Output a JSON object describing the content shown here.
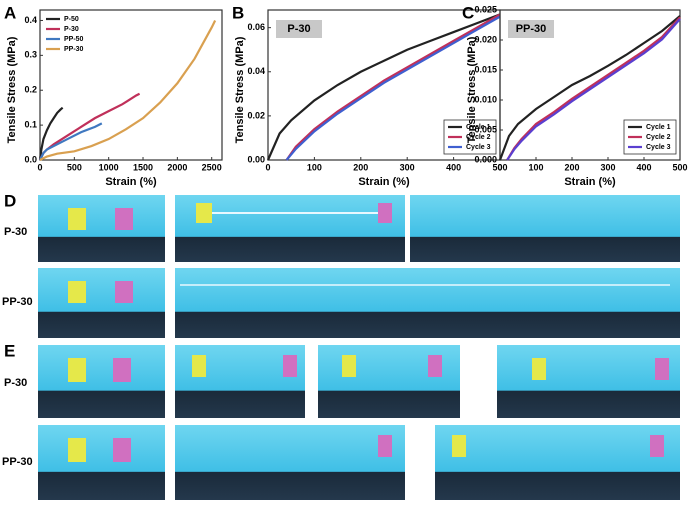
{
  "chart_data": [
    {
      "type": "line",
      "panel": "A",
      "xlabel": "Strain (%)",
      "ylabel": "Tensile Stress (MPa)",
      "xlim": [
        0,
        2650
      ],
      "xticks": [
        0,
        500,
        1000,
        1500,
        2000,
        2500
      ],
      "ylim": [
        0,
        0.43
      ],
      "yticks": [
        {
          "value": 0,
          "label": "0.0"
        },
        0.1,
        0.2,
        0.3,
        0.4
      ],
      "legend": "upper left",
      "series": [
        {
          "name": "P-50",
          "color": "#222222",
          "x": [
            0,
            20,
            50,
            100,
            150,
            200,
            250,
            300,
            330
          ],
          "values": [
            0,
            0.03,
            0.06,
            0.085,
            0.105,
            0.12,
            0.135,
            0.145,
            0.15
          ]
        },
        {
          "name": "P-30",
          "color": "#c0305a",
          "x": [
            0,
            50,
            100,
            200,
            400,
            600,
            800,
            1000,
            1200,
            1400,
            1450
          ],
          "values": [
            0,
            0.02,
            0.03,
            0.045,
            0.07,
            0.095,
            0.12,
            0.14,
            0.16,
            0.185,
            0.19
          ]
        },
        {
          "name": "PP-50",
          "color": "#3f78c0",
          "x": [
            0,
            50,
            100,
            200,
            400,
            600,
            800,
            900
          ],
          "values": [
            0,
            0.02,
            0.03,
            0.04,
            0.06,
            0.08,
            0.095,
            0.105
          ]
        },
        {
          "name": "PP-30",
          "color": "#d9a050",
          "x": [
            0,
            100,
            250,
            500,
            750,
            1000,
            1250,
            1500,
            1750,
            2000,
            2250,
            2500,
            2550
          ],
          "values": [
            0,
            0.01,
            0.018,
            0.025,
            0.04,
            0.06,
            0.088,
            0.12,
            0.165,
            0.22,
            0.29,
            0.38,
            0.4
          ]
        }
      ]
    },
    {
      "type": "line",
      "panel": "B",
      "annotation": "P-30",
      "xlabel": "Strain (%)",
      "ylabel": "Tensile Stress (MPa)",
      "xlim": [
        0,
        500
      ],
      "xticks": [
        0,
        100,
        200,
        300,
        400,
        500
      ],
      "ylim": [
        0,
        0.068
      ],
      "yticks": [
        {
          "value": 0,
          "label": "0.00"
        },
        {
          "value": 0.02,
          "label": "0.02"
        },
        {
          "value": 0.04,
          "label": "0.04"
        },
        {
          "value": 0.06,
          "label": "0.06"
        }
      ],
      "legend": "lower right",
      "series": [
        {
          "name": "Cycle 1",
          "color": "#222222",
          "x": [
            0,
            25,
            50,
            100,
            150,
            200,
            250,
            300,
            350,
            400,
            450,
            500
          ],
          "values": [
            0,
            0.012,
            0.018,
            0.027,
            0.034,
            0.04,
            0.045,
            0.05,
            0.054,
            0.058,
            0.062,
            0.066
          ]
        },
        {
          "name": "Cycle 2",
          "color": "#c0305a",
          "x": [
            40,
            60,
            100,
            150,
            200,
            250,
            300,
            350,
            400,
            450,
            500
          ],
          "values": [
            0,
            0.006,
            0.014,
            0.022,
            0.029,
            0.036,
            0.042,
            0.048,
            0.054,
            0.06,
            0.066
          ]
        },
        {
          "name": "Cycle 3",
          "color": "#3f5fd0",
          "x": [
            40,
            60,
            100,
            150,
            200,
            250,
            300,
            350,
            400,
            450,
            500
          ],
          "values": [
            0,
            0.005,
            0.013,
            0.021,
            0.028,
            0.035,
            0.041,
            0.047,
            0.053,
            0.059,
            0.065
          ]
        }
      ]
    },
    {
      "type": "line",
      "panel": "C",
      "annotation": "PP-30",
      "xlabel": "Strain (%)",
      "ylabel": "Tensile Stress (MPa)",
      "xlim": [
        0,
        500
      ],
      "xticks": [
        0,
        100,
        200,
        300,
        400,
        500
      ],
      "ylim": [
        0,
        0.025
      ],
      "yticks": [
        {
          "value": 0,
          "label": "0.000"
        },
        0.005,
        {
          "value": 0.01,
          "label": "0.010"
        },
        0.015,
        {
          "value": 0.02,
          "label": "0.020"
        },
        0.025
      ],
      "legend": "lower right",
      "series": [
        {
          "name": "Cycle 1",
          "color": "#222222",
          "x": [
            0,
            25,
            50,
            100,
            150,
            200,
            250,
            300,
            350,
            400,
            450,
            500
          ],
          "values": [
            0,
            0.004,
            0.006,
            0.0085,
            0.0105,
            0.0125,
            0.014,
            0.0157,
            0.0175,
            0.0195,
            0.0215,
            0.024
          ]
        },
        {
          "name": "Cycle 2",
          "color": "#c0305a",
          "x": [
            20,
            40,
            60,
            100,
            150,
            200,
            250,
            300,
            350,
            400,
            450,
            500
          ],
          "values": [
            0,
            0.002,
            0.0035,
            0.006,
            0.008,
            0.0102,
            0.0122,
            0.0142,
            0.0162,
            0.0182,
            0.0205,
            0.0238
          ]
        },
        {
          "name": "Cycle 3",
          "color": "#5a3fd0",
          "x": [
            20,
            40,
            60,
            100,
            150,
            200,
            250,
            300,
            350,
            400,
            450,
            500
          ],
          "values": [
            0,
            0.0018,
            0.0032,
            0.0056,
            0.0076,
            0.0098,
            0.0118,
            0.0138,
            0.0158,
            0.0178,
            0.0201,
            0.0235
          ]
        }
      ]
    }
  ],
  "photos": [
    {
      "label": "D",
      "rows": [
        {
          "label": "P-30"
        },
        {
          "label": "PP-30"
        }
      ]
    },
    {
      "label": "E",
      "rows": [
        {
          "label": "P-30"
        },
        {
          "label": "PP-30"
        }
      ]
    }
  ]
}
